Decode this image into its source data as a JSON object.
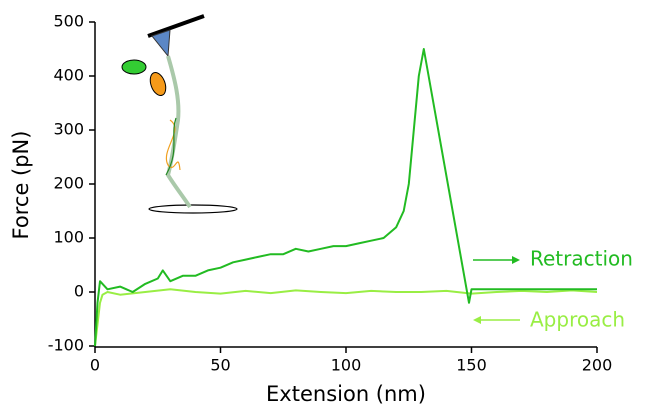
{
  "chart_data": {
    "type": "line",
    "xlabel": "Extension (nm)",
    "ylabel": "Force (pN)",
    "xlim": [
      0,
      200
    ],
    "ylim": [
      -100,
      500
    ],
    "xticks": [
      0,
      50,
      100,
      150,
      200
    ],
    "yticks": [
      -100,
      0,
      100,
      200,
      300,
      400,
      500
    ],
    "series": [
      {
        "name": "Approach",
        "color": "#99ee44",
        "x": [
          0,
          1,
          2,
          3,
          5,
          10,
          20,
          30,
          40,
          50,
          60,
          70,
          80,
          90,
          100,
          110,
          120,
          130,
          140,
          150,
          160,
          170,
          180,
          190,
          200
        ],
        "values": [
          -100,
          -60,
          -20,
          -5,
          0,
          -5,
          0,
          5,
          0,
          -3,
          2,
          -2,
          3,
          0,
          -2,
          2,
          0,
          0,
          2,
          -3,
          0,
          2,
          0,
          3,
          0
        ]
      },
      {
        "name": "Retraction",
        "color": "#22bb22",
        "x": [
          0,
          1,
          2,
          5,
          10,
          15,
          20,
          25,
          27,
          30,
          35,
          40,
          45,
          50,
          55,
          60,
          65,
          70,
          75,
          80,
          85,
          90,
          95,
          100,
          105,
          110,
          115,
          120,
          123,
          125,
          127,
          129,
          131,
          149,
          150,
          160,
          170,
          180,
          190,
          200
        ],
        "values": [
          -100,
          -20,
          20,
          5,
          10,
          0,
          15,
          25,
          40,
          20,
          30,
          30,
          40,
          45,
          55,
          60,
          65,
          70,
          70,
          80,
          75,
          80,
          85,
          85,
          90,
          95,
          100,
          120,
          150,
          200,
          300,
          400,
          450,
          -20,
          5,
          5,
          5,
          5,
          5,
          5
        ]
      }
    ]
  }
}
